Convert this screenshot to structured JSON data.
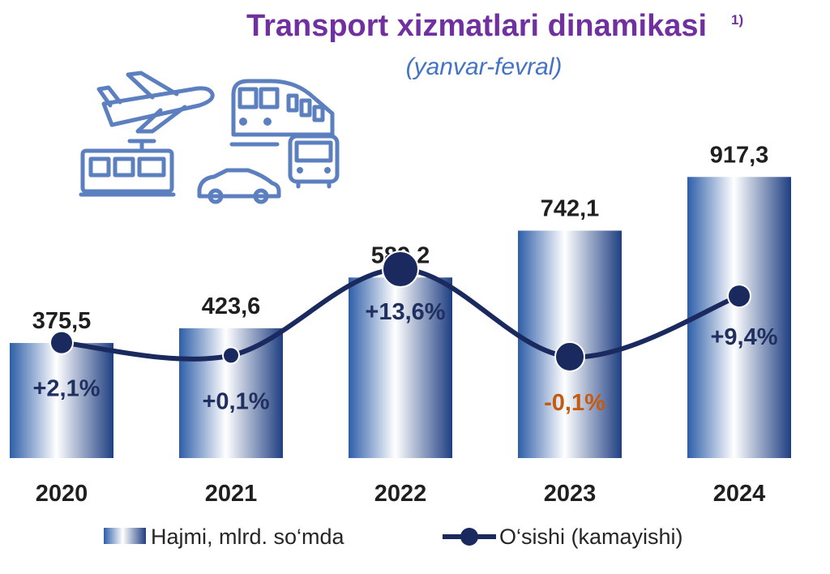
{
  "title": "Transport xizmatlari dinamikasi",
  "title_note": "1)",
  "subtitle": "(yanvar-fevral)",
  "icons": [
    "airplane-icon",
    "train-icon",
    "tram-icon",
    "car-icon",
    "bus-icon"
  ],
  "colors": {
    "title": "#7030a0",
    "subtitle": "#4472c4",
    "bar_dark": "#2e5597",
    "bar_light": "#ffffff",
    "line": "#1a2a5e",
    "negative": "#c55a11",
    "icons": "#5b7fbf"
  },
  "legend": {
    "bars_label": "Hajmi, mlrd. so‘mda",
    "line_label": "O‘sishi (kamayishi)"
  },
  "chart_data": {
    "type": "bar",
    "categories": [
      "2020",
      "2021",
      "2022",
      "2023",
      "2024"
    ],
    "series": [
      {
        "name": "Hajmi, mlrd. so‘mda",
        "type": "bar",
        "values": [
          375.5,
          423.6,
          589.2,
          742.1,
          917.3
        ],
        "labels": [
          "375,5",
          "423,6",
          "589,2",
          "742,1",
          "917,3"
        ]
      },
      {
        "name": "O‘sishi (kamayishi)",
        "type": "line",
        "values": [
          2.1,
          0.1,
          13.6,
          -0.1,
          9.4
        ],
        "labels": [
          "+2,1%",
          "+0,1%",
          "+13,6%",
          "-0,1%",
          "+9,4%"
        ]
      }
    ],
    "legend_position": "bottom",
    "grid": false
  }
}
